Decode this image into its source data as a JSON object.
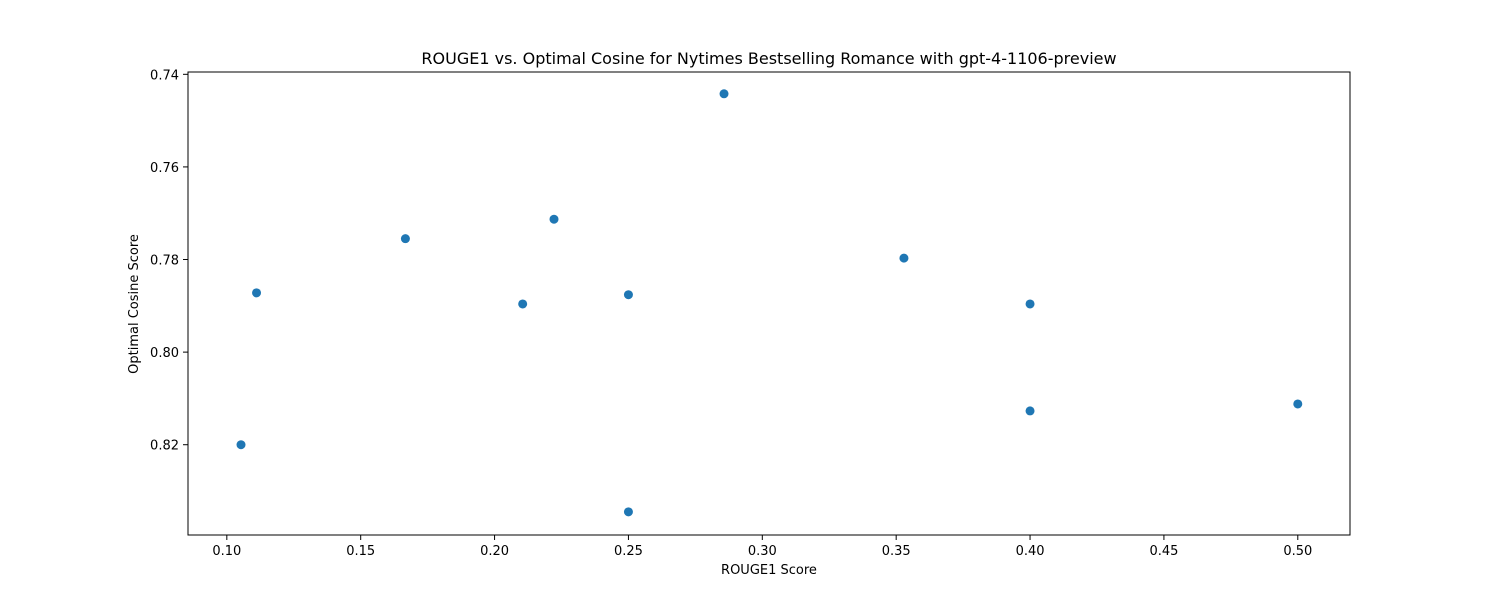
{
  "chart_data": {
    "type": "scatter",
    "title": "ROUGE1 vs. Optimal Cosine for Nytimes Bestselling Romance with gpt-4-1106-preview",
    "xlabel": "ROUGE1 Score",
    "ylabel": "Optimal Cosine Score",
    "xlim": [
      0.0855,
      0.5195
    ],
    "ylim": [
      0.7395,
      0.8395
    ],
    "y_inverted": true,
    "grid": false,
    "x_ticks": [
      0.1,
      0.15,
      0.2,
      0.25,
      0.3,
      0.35,
      0.4,
      0.45,
      0.5
    ],
    "x_tick_labels": [
      "0.10",
      "0.15",
      "0.20",
      "0.25",
      "0.30",
      "0.35",
      "0.40",
      "0.45",
      "0.50"
    ],
    "y_ticks": [
      0.74,
      0.76,
      0.78,
      0.8,
      0.82
    ],
    "y_tick_labels": [
      "0.74",
      "0.76",
      "0.78",
      "0.80",
      "0.82"
    ],
    "marker_color": "#1f77b4",
    "points": [
      {
        "x": 0.1053,
        "y": 0.82
      },
      {
        "x": 0.1111,
        "y": 0.7872
      },
      {
        "x": 0.1667,
        "y": 0.7755
      },
      {
        "x": 0.2105,
        "y": 0.7896
      },
      {
        "x": 0.2222,
        "y": 0.7713
      },
      {
        "x": 0.25,
        "y": 0.7876
      },
      {
        "x": 0.25,
        "y": 0.8345
      },
      {
        "x": 0.2857,
        "y": 0.7442
      },
      {
        "x": 0.3529,
        "y": 0.7797
      },
      {
        "x": 0.4,
        "y": 0.7896
      },
      {
        "x": 0.4,
        "y": 0.8127
      },
      {
        "x": 0.5,
        "y": 0.8112
      }
    ]
  }
}
